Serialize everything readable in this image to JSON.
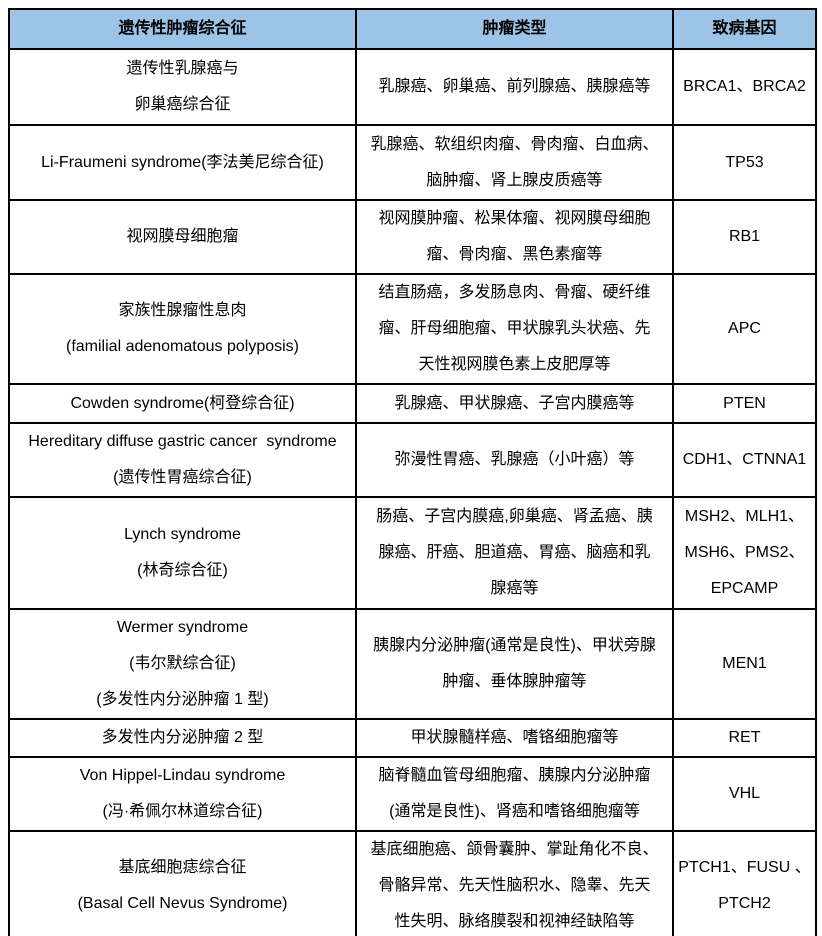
{
  "colors": {
    "header_bg": "#9DC3E6",
    "border": "#000000",
    "text": "#000000"
  },
  "table": {
    "headers": [
      {
        "label": "遗传性肿瘤综合征"
      },
      {
        "label": "肿瘤类型"
      },
      {
        "label": "致病基因"
      }
    ],
    "rows": [
      {
        "syndrome": "遗传性乳腺癌与\n卵巢癌综合征",
        "tumor_types": "乳腺癌、卵巢癌、前列腺癌、胰腺癌等",
        "genes": "BRCA1、BRCA2"
      },
      {
        "syndrome": "Li-Fraumeni syndrome(李法美尼综合征)",
        "tumor_types": "乳腺癌、软组织肉瘤、骨肉瘤、白血病、\n脑肿瘤、肾上腺皮质癌等",
        "genes": "TP53"
      },
      {
        "syndrome": "视网膜母细胞瘤",
        "tumor_types": "视网膜肿瘤、松果体瘤、视网膜母细胞\n瘤、骨肉瘤、黑色素瘤等",
        "genes": "RB1"
      },
      {
        "syndrome": "家族性腺瘤性息肉\n(familial adenomatous polyposis)",
        "tumor_types": "结直肠癌，多发肠息肉、骨瘤、硬纤维\n瘤、肝母细胞瘤、甲状腺乳头状癌、先\n天性视网膜色素上皮肥厚等",
        "genes": "APC"
      },
      {
        "syndrome": "Cowden syndrome(柯登综合征)",
        "tumor_types": "乳腺癌、甲状腺癌、子宫内膜癌等",
        "genes": "PTEN"
      },
      {
        "syndrome": "Hereditary diffuse gastric cancer  syndrome\n(遗传性胃癌综合征)",
        "tumor_types": "弥漫性胃癌、乳腺癌（小叶癌）等",
        "genes": "CDH1、CTNNA1"
      },
      {
        "syndrome": "Lynch syndrome\n(林奇综合征)",
        "tumor_types": "肠癌、子宫内膜癌,卵巢癌、肾孟癌、胰\n腺癌、肝癌、胆道癌、胃癌、脑癌和乳\n腺癌等",
        "genes": "MSH2、MLH1、\nMSH6、PMS2、\nEPCAMP"
      },
      {
        "syndrome": "Wermer syndrome\n(韦尔默综合征)\n(多发性内分泌肿瘤 1 型)",
        "tumor_types": "胰腺内分泌肿瘤(通常是良性)、甲状旁腺\n肿瘤、垂体腺肿瘤等",
        "genes": "MEN1"
      },
      {
        "syndrome": "多发性内分泌肿瘤 2 型",
        "tumor_types": "甲状腺髓样癌、嗜铬细胞瘤等",
        "genes": "RET"
      },
      {
        "syndrome": "Von Hippel-Lindau syndrome\n(冯·希佩尔林道综合征)",
        "tumor_types": "脑脊髓血管母细胞瘤、胰腺内分泌肿瘤\n(通常是良性)、肾癌和嗜铬细胞瘤等",
        "genes": "VHL"
      },
      {
        "syndrome": "基底细胞痣综合征\n(Basal Cell Nevus Syndrome)",
        "tumor_types": "基底细胞癌、颌骨囊肿、掌趾角化不良、\n骨骼异常、先天性脑积水、隐睾、先天\n性失明、脉络膜裂和视神经缺陷等",
        "genes": "PTCH1、FUSU 、\nPTCH2"
      }
    ]
  }
}
